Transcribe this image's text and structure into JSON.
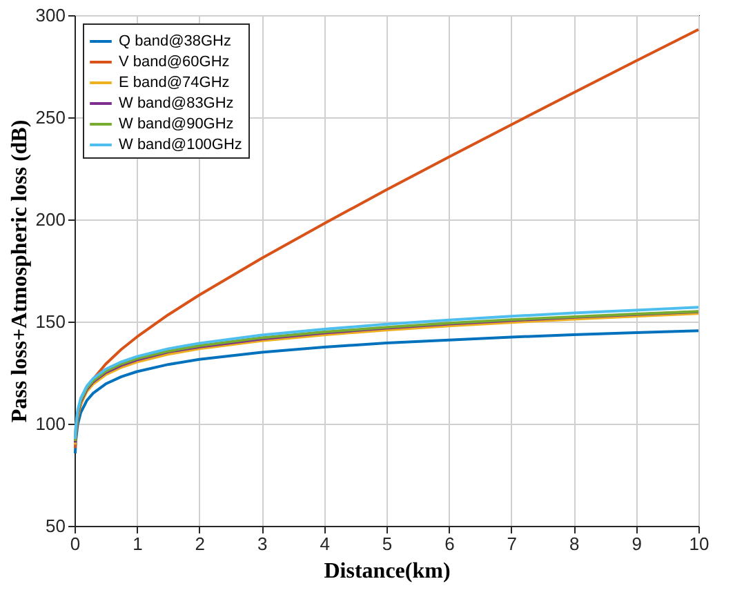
{
  "chart_data": {
    "type": "line",
    "xlabel": "Distance(km)",
    "ylabel": "Pass loss+Atmospheric loss (dB)",
    "x": [
      0.01,
      0.02,
      0.05,
      0.1,
      0.2,
      0.3,
      0.5,
      0.75,
      1,
      1.5,
      2,
      3,
      4,
      5,
      6,
      7,
      8,
      9,
      10
    ],
    "series": [
      {
        "name": "Q band@38GHz",
        "color": "#0072bd",
        "values": [
          85.5,
          91.5,
          99.5,
          105.5,
          111.5,
          115.0,
          119.5,
          123.0,
          125.5,
          129.0,
          131.5,
          135.0,
          137.5,
          139.5,
          141.0,
          142.4,
          143.6,
          144.6,
          145.5
        ]
      },
      {
        "name": "V band@60GHz",
        "color": "#d95319",
        "values": [
          88.1,
          94.3,
          102.7,
          109.5,
          116.9,
          121.9,
          129.2,
          136.4,
          142.5,
          153.3,
          163.0,
          181.0,
          198.0,
          214.5,
          230.6,
          246.4,
          262.1,
          277.6,
          293.0
        ]
      },
      {
        "name": "E band@74GHz",
        "color": "#edb120",
        "values": [
          89.8,
          95.8,
          103.8,
          109.8,
          115.9,
          119.5,
          124.0,
          127.6,
          130.2,
          134.0,
          136.7,
          140.6,
          143.5,
          145.9,
          147.9,
          149.6,
          151.2,
          152.6,
          154.0
        ]
      },
      {
        "name": "W band@83GHz",
        "color": "#7e2f8e",
        "values": [
          90.8,
          96.8,
          104.8,
          110.8,
          116.9,
          120.5,
          125.0,
          128.6,
          131.2,
          135.1,
          137.6,
          141.5,
          144.4,
          146.8,
          148.8,
          150.5,
          152.1,
          153.5,
          154.8
        ]
      },
      {
        "name": "W band@90GHz",
        "color": "#77ac30",
        "values": [
          91.5,
          97.5,
          105.5,
          111.5,
          117.6,
          121.1,
          125.7,
          129.3,
          131.9,
          135.5,
          138.2,
          142.1,
          144.9,
          147.2,
          149.2,
          150.9,
          152.4,
          153.7,
          155.0
        ]
      },
      {
        "name": "W band@100GHz",
        "color": "#4dbeee",
        "values": [
          92.5,
          98.5,
          106.5,
          112.5,
          118.6,
          122.2,
          126.7,
          130.3,
          132.9,
          136.7,
          139.4,
          143.4,
          146.3,
          148.7,
          150.8,
          152.6,
          154.2,
          155.6,
          157.0
        ]
      }
    ],
    "xlim": [
      0,
      10
    ],
    "xticks": [
      0,
      1,
      2,
      3,
      4,
      5,
      6,
      7,
      8,
      9,
      10
    ],
    "ylim": [
      50,
      300
    ],
    "yticks": [
      50,
      100,
      150,
      200,
      250,
      300
    ],
    "grid": true,
    "legend": "top left",
    "line_style": "solid",
    "marker": "none"
  }
}
